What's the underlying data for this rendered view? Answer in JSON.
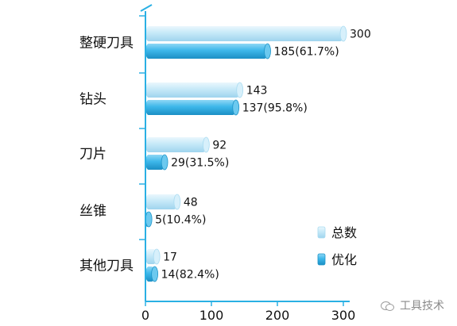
{
  "chart_data": {
    "type": "bar",
    "orientation": "horizontal",
    "categories": [
      "整硬刀具",
      "钻头",
      "刀片",
      "丝锥",
      "其他刀具"
    ],
    "series": [
      {
        "name": "总数",
        "values": [
          300,
          143,
          92,
          48,
          17
        ],
        "labels": [
          "300",
          "143",
          "92",
          "48",
          "17"
        ],
        "color": "#bfe6f6"
      },
      {
        "name": "优化",
        "values": [
          185,
          137,
          29,
          5,
          14
        ],
        "labels": [
          "185(61.7%)",
          "137(95.8%)",
          "29(31.5%)",
          "5(10.4%)",
          "14(82.4%)"
        ],
        "color": "#39b5e8"
      }
    ],
    "xlim": [
      0,
      300
    ],
    "xticks": [
      "0",
      "100",
      "200",
      "300"
    ],
    "legend_position": "right"
  },
  "colors": {
    "axis": "#2ab0e4",
    "total": "#bfe6f6",
    "optimized": "#39b5e8"
  },
  "watermark": {
    "text": "工具技术",
    "icon": "wechat-icon"
  }
}
